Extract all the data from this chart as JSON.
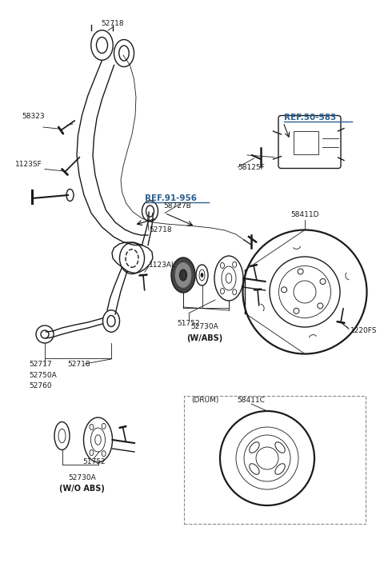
{
  "bg_color": "#ffffff",
  "line_color": "#1a1a1a",
  "label_color": "#1a1a1a",
  "ref_color": "#2a5f8f",
  "figsize": [
    4.8,
    7.09
  ],
  "dpi": 100,
  "xlim": [
    0,
    9.6
  ],
  "ylim": [
    0,
    14.18
  ]
}
